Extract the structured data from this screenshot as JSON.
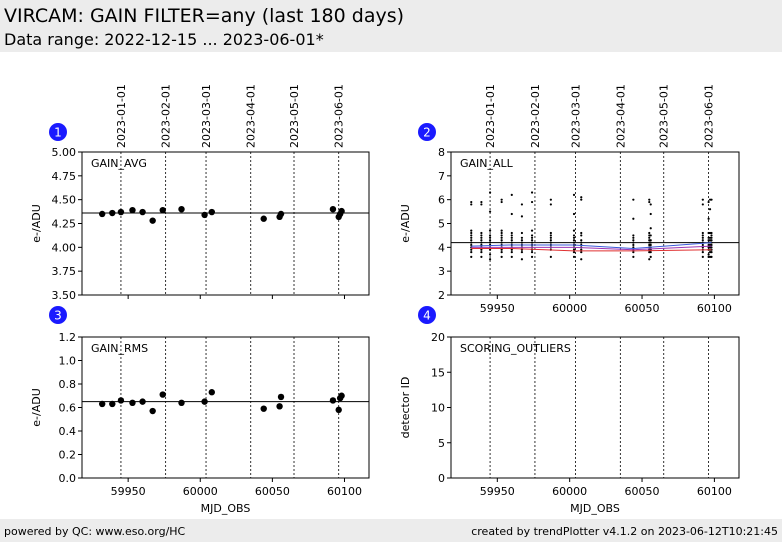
{
  "header": {
    "title": "VIRCAM: GAIN FILTER=any (last 180 days)",
    "subtitle": "Data range: 2022-12-15 ... 2023-06-01*"
  },
  "footer": {
    "left": "powered by QC: www.eso.org/HC",
    "right": "created by trendPlotter v4.1.2 on 2023-06-12T10:21:45"
  },
  "colors": {
    "badge": "#1a1aff",
    "refline": "#000000",
    "avg_blue": "#3b5bdb",
    "avg_red": "#e03131",
    "avg_purple": "#9c36b5"
  },
  "date_markers": [
    {
      "label": "2023-01-01",
      "mjd": 59945
    },
    {
      "label": "2023-02-01",
      "mjd": 59976
    },
    {
      "label": "2023-03-01",
      "mjd": 60004
    },
    {
      "label": "2023-04-01",
      "mjd": 60035
    },
    {
      "label": "2023-05-01",
      "mjd": 60065
    },
    {
      "label": "2023-06-01",
      "mjd": 60096
    }
  ],
  "chart_data": [
    {
      "badge": "1",
      "type": "scatter",
      "title": "GAIN_AVG",
      "xlabel": "",
      "ylabel": "e-/ADU",
      "xlim": [
        59918,
        60117
      ],
      "ylim": [
        3.5,
        5.0
      ],
      "xticks": [
        59950,
        60000,
        60050,
        60100
      ],
      "xtick_labels": [
        "",
        "",
        "",
        ""
      ],
      "yticks": [
        3.5,
        3.75,
        4.0,
        4.25,
        4.5,
        4.75,
        5.0
      ],
      "ytick_labels": [
        "3.50",
        "3.75",
        "4.00",
        "4.25",
        "4.50",
        "4.75",
        "5.00"
      ],
      "ref_line": 4.36,
      "x": [
        59932,
        59939,
        59945,
        59953,
        59960,
        59967,
        59974,
        59987,
        60003,
        60008,
        60044,
        60055,
        60056,
        60092,
        60096,
        60097,
        60098
      ],
      "y": [
        4.35,
        4.36,
        4.37,
        4.39,
        4.37,
        4.28,
        4.39,
        4.4,
        4.34,
        4.37,
        4.3,
        4.32,
        4.35,
        4.4,
        4.32,
        4.35,
        4.38
      ]
    },
    {
      "badge": "2",
      "type": "scatter",
      "title": "GAIN_ALL",
      "xlabel": "",
      "ylabel": "e-/ADU",
      "xlim": [
        59918,
        60117
      ],
      "ylim": [
        2,
        8
      ],
      "xticks": [
        59950,
        60000,
        60050,
        60100
      ],
      "xtick_labels": [
        "59950",
        "60000",
        "60050",
        "60100"
      ],
      "yticks": [
        2,
        3,
        4,
        5,
        6,
        7,
        8
      ],
      "ytick_labels": [
        "2",
        "3",
        "4",
        "5",
        "6",
        "7",
        "8"
      ],
      "ref_line": 4.2,
      "x_groups": [
        59932,
        59939,
        59945,
        59953,
        59960,
        59967,
        59974,
        59987,
        60003,
        60008,
        60044,
        60055,
        60056,
        60092,
        60096,
        60097,
        60098
      ],
      "y_groups": [
        [
          3.6,
          3.8,
          3.9,
          4.0,
          4.1,
          4.2,
          4.3,
          4.4,
          4.5,
          4.6,
          4.7,
          5.8,
          5.9
        ],
        [
          3.6,
          3.8,
          3.9,
          4.0,
          4.1,
          4.2,
          4.3,
          4.4,
          4.5,
          4.6,
          5.8,
          5.9
        ],
        [
          3.5,
          3.7,
          3.9,
          4.0,
          4.1,
          4.2,
          4.3,
          4.4,
          4.5,
          4.7,
          5.5,
          6.3
        ],
        [
          3.6,
          3.8,
          3.9,
          4.0,
          4.1,
          4.2,
          4.3,
          4.4,
          4.5,
          4.6,
          4.7,
          5.9,
          6.0
        ],
        [
          3.6,
          3.8,
          3.9,
          4.0,
          4.1,
          4.2,
          4.3,
          4.4,
          4.5,
          4.6,
          5.4,
          6.2
        ],
        [
          3.5,
          3.8,
          3.9,
          4.0,
          4.1,
          4.2,
          4.3,
          4.4,
          4.6,
          5.3,
          5.8
        ],
        [
          3.6,
          3.8,
          3.9,
          4.0,
          4.1,
          4.2,
          4.3,
          4.4,
          4.5,
          4.7,
          5.9,
          6.3
        ],
        [
          3.6,
          3.9,
          4.0,
          4.1,
          4.2,
          4.3,
          4.4,
          4.5,
          4.6,
          5.8,
          6.0
        ],
        [
          3.6,
          3.8,
          3.9,
          4.0,
          4.1,
          4.2,
          4.3,
          4.4,
          4.5,
          4.7,
          5.4,
          6.2
        ],
        [
          3.5,
          3.8,
          3.9,
          4.0,
          4.1,
          4.2,
          4.3,
          4.5,
          4.6,
          6.0,
          6.1
        ],
        [
          3.6,
          3.8,
          3.9,
          4.0,
          4.1,
          4.2,
          4.3,
          4.4,
          4.5,
          5.2,
          6.0
        ],
        [
          3.5,
          3.8,
          3.9,
          4.0,
          4.1,
          4.2,
          4.3,
          4.4,
          4.5,
          4.6,
          5.9,
          6.0
        ],
        [
          3.6,
          3.8,
          3.9,
          4.0,
          4.1,
          4.2,
          4.3,
          4.5,
          4.8,
          5.4,
          5.8
        ],
        [
          3.6,
          3.8,
          3.9,
          4.0,
          4.1,
          4.2,
          4.3,
          4.4,
          4.5,
          4.6,
          5.8,
          6.0
        ],
        [
          3.6,
          3.7,
          3.9,
          4.0,
          4.1,
          4.2,
          4.3,
          4.4,
          4.6,
          5.2,
          5.9
        ],
        [
          3.6,
          3.8,
          3.9,
          4.0,
          4.1,
          4.2,
          4.3,
          4.4,
          4.6,
          5.6,
          6.0
        ],
        [
          3.6,
          3.8,
          3.9,
          4.0,
          4.1,
          4.2,
          4.3,
          4.4,
          4.5,
          4.6,
          6.0
        ]
      ],
      "series": [
        {
          "name": "blue",
          "x": [
            59932,
            59960,
            60003,
            60044,
            60098
          ],
          "y": [
            4.05,
            4.1,
            4.1,
            3.95,
            4.2
          ]
        },
        {
          "name": "red",
          "x": [
            59932,
            59960,
            60003,
            60044,
            60098
          ],
          "y": [
            3.95,
            3.95,
            3.85,
            3.85,
            3.9
          ]
        },
        {
          "name": "purple",
          "x": [
            59932,
            59960,
            60003,
            60044,
            60098
          ],
          "y": [
            4.0,
            4.0,
            4.0,
            3.9,
            4.05
          ]
        }
      ]
    },
    {
      "badge": "3",
      "type": "scatter",
      "title": "GAIN_RMS",
      "xlabel": "MJD_OBS",
      "ylabel": "e-/ADU",
      "xlim": [
        59918,
        60117
      ],
      "ylim": [
        0.0,
        1.2
      ],
      "xticks": [
        59950,
        60000,
        60050,
        60100
      ],
      "xtick_labels": [
        "59950",
        "60000",
        "60050",
        "60100"
      ],
      "yticks": [
        0.0,
        0.2,
        0.4,
        0.6,
        0.8,
        1.0,
        1.2
      ],
      "ytick_labels": [
        "0.0",
        "0.2",
        "0.4",
        "0.6",
        "0.8",
        "1.0",
        "1.2"
      ],
      "ref_line": 0.65,
      "x": [
        59932,
        59939,
        59945,
        59953,
        59960,
        59967,
        59974,
        59987,
        60003,
        60008,
        60044,
        60055,
        60056,
        60092,
        60096,
        60097,
        60098
      ],
      "y": [
        0.63,
        0.63,
        0.66,
        0.64,
        0.65,
        0.57,
        0.71,
        0.64,
        0.65,
        0.73,
        0.59,
        0.61,
        0.69,
        0.66,
        0.58,
        0.68,
        0.7
      ]
    },
    {
      "badge": "4",
      "type": "scatter",
      "title": "SCORING_OUTLIERS",
      "xlabel": "MJD_OBS",
      "ylabel": "detector ID",
      "xlim": [
        59918,
        60117
      ],
      "ylim": [
        0,
        20
      ],
      "xticks": [
        59950,
        60000,
        60050,
        60100
      ],
      "xtick_labels": [
        "59950",
        "60000",
        "60050",
        "60100"
      ],
      "yticks": [
        0,
        5,
        10,
        15,
        20
      ],
      "ytick_labels": [
        "0",
        "5",
        "10",
        "15",
        "20"
      ],
      "ref_line": null,
      "x": [],
      "y": []
    }
  ]
}
